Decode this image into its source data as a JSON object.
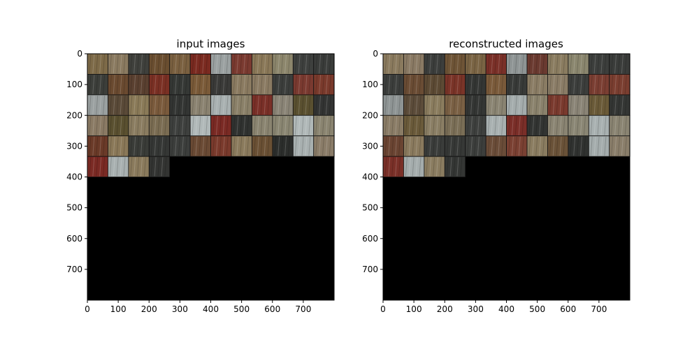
{
  "chart_data": [
    {
      "type": "heatmap",
      "title": "input images",
      "image_extent": [
        800,
        800
      ],
      "xlim": [
        0,
        800
      ],
      "ylim": [
        800,
        0
      ],
      "x_ticks": [
        0,
        100,
        200,
        300,
        400,
        500,
        600,
        700
      ],
      "y_ticks": [
        0,
        100,
        200,
        300,
        400,
        500,
        600,
        700
      ],
      "tile_size": 66.7,
      "tile_columns": 12,
      "filled_rows": 5,
      "last_row_tiles": 4,
      "background": "#000000",
      "tile_colors": [
        [
          "#7d6a48",
          "#8a7a60",
          "#3f403c",
          "#6a4e30",
          "#7a6040",
          "#7a2a20",
          "#9aa0a0",
          "#7a3a30",
          "#8a7858",
          "#8c866c",
          "#3e403e",
          "#3a3c3a"
        ],
        [
          "#3c3e3a",
          "#6a4a30",
          "#5a4030",
          "#7a3024",
          "#353835",
          "#7a5a38",
          "#3a3a38",
          "#8a7a60",
          "#8a7a62",
          "#3c3e3c",
          "#7a3a30",
          "#7a3a2c"
        ],
        [
          "#9aa0a0",
          "#5a4a38",
          "#8a7a58",
          "#7a5a3c",
          "#333533",
          "#8a8270",
          "#a8b0b0",
          "#8a8068",
          "#7a3028",
          "#8a8476",
          "#5a5030",
          "#333433"
        ],
        [
          "#8a7a64",
          "#5a5030",
          "#8a7c60",
          "#7a6c52",
          "#3e403e",
          "#b0b8b8",
          "#7a2a24",
          "#303230",
          "#8a8470",
          "#8a8672",
          "#b0b8b8",
          "#8a8470"
        ],
        [
          "#6a3a28",
          "#8a7858",
          "#3a3c38",
          "#353735",
          "#3c3e3c",
          "#6a4a34",
          "#7a3a2c",
          "#8a7a5c",
          "#6a5034",
          "#2c2e2c",
          "#a8b0b0",
          "#8a7c68"
        ],
        [
          "#7a2a24",
          "#a8b0b0",
          "#8a7a5c",
          "#333432"
        ]
      ]
    },
    {
      "type": "heatmap",
      "title": "reconstructed images",
      "image_extent": [
        800,
        800
      ],
      "xlim": [
        0,
        800
      ],
      "ylim": [
        800,
        0
      ],
      "x_ticks": [
        0,
        100,
        200,
        300,
        400,
        500,
        600,
        700
      ],
      "y_ticks": [
        0,
        100,
        200,
        300,
        400,
        500,
        600,
        700
      ],
      "tile_size": 66.7,
      "tile_columns": 12,
      "filled_rows": 5,
      "last_row_tiles": 4,
      "background": "#000000",
      "tile_colors": [
        [
          "#8a7a5e",
          "#8a7a64",
          "#3c3e3c",
          "#6e5436",
          "#7a6444",
          "#7a3028",
          "#8e9494",
          "#6a3a30",
          "#8a7c60",
          "#8a866e",
          "#3c3e3c",
          "#3a3c3a"
        ],
        [
          "#3c3e3c",
          "#6a4c34",
          "#5c4a34",
          "#7a3428",
          "#343634",
          "#7a5a3a",
          "#383a38",
          "#8a7c64",
          "#8a7c66",
          "#3c3e3c",
          "#7a3e32",
          "#7a3e30"
        ],
        [
          "#8e9494",
          "#5c4c3a",
          "#8a7c5e",
          "#7a6044",
          "#343634",
          "#8a8472",
          "#a4acac",
          "#8a826c",
          "#7a3a2e",
          "#8a8476",
          "#6a5a38",
          "#343634"
        ],
        [
          "#8a7c66",
          "#6a5a3a",
          "#8a7e64",
          "#7a6e56",
          "#3e403e",
          "#a8b0b0",
          "#7a2e28",
          "#323432",
          "#8a8472",
          "#8a8674",
          "#a8b0b0",
          "#8a8472"
        ],
        [
          "#6a4432",
          "#8a7a5e",
          "#3a3c3a",
          "#363836",
          "#3c3e3c",
          "#6a4c38",
          "#7a4032",
          "#8a7c60",
          "#6a5238",
          "#303230",
          "#a4acac",
          "#8a7e6a"
        ],
        [
          "#7a3028",
          "#a4acac",
          "#8a7c60",
          "#343634"
        ]
      ]
    }
  ]
}
